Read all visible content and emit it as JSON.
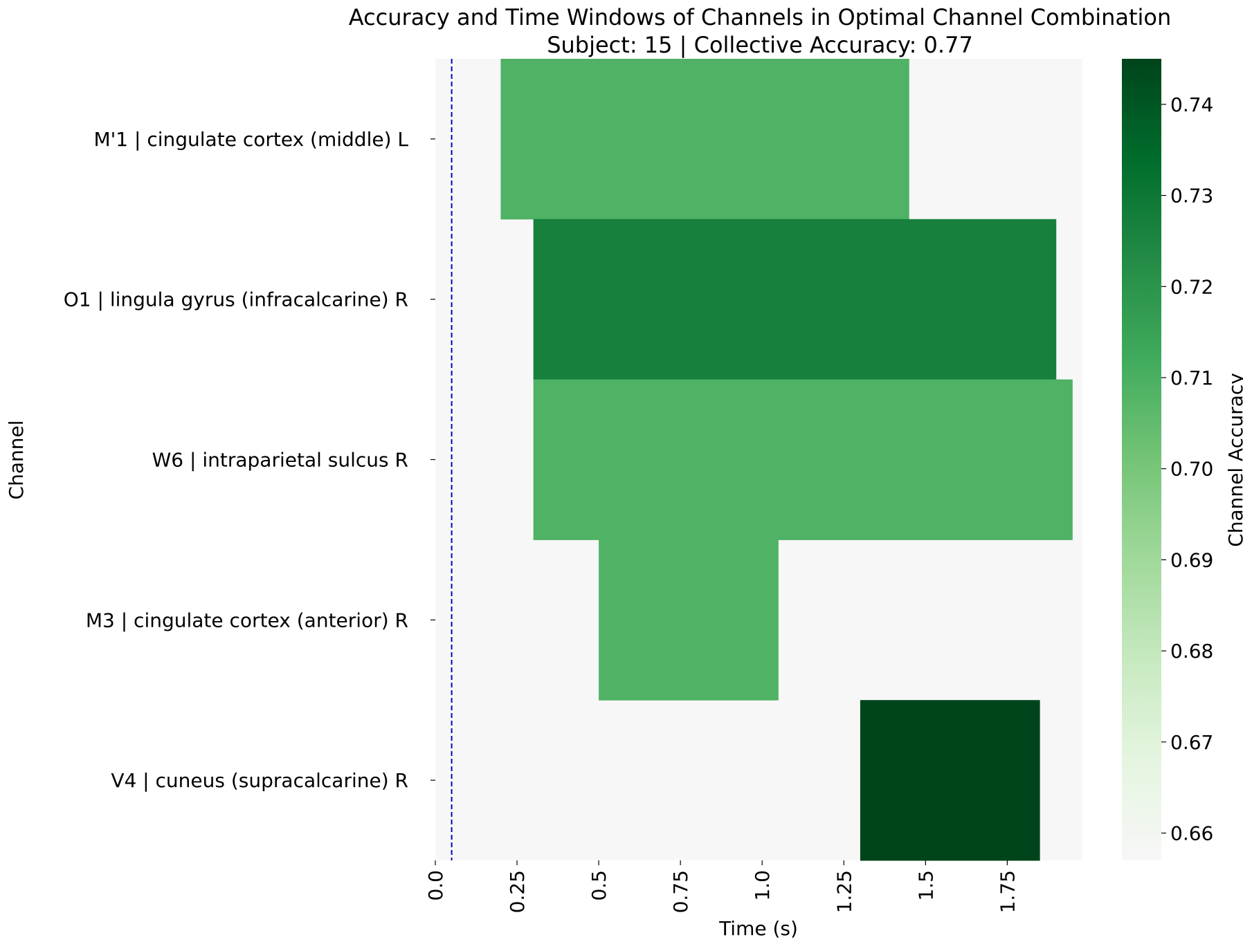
{
  "chart_data": {
    "type": "heatmap",
    "title": "Accuracy and Time Windows of Channels in Optimal Channel Combination",
    "subtitle": "Subject: 15 | Collective Accuracy: 0.77",
    "xlabel": "Time (s)",
    "ylabel": "Channel",
    "colorbar_label": "Channel Accuracy",
    "xlim": [
      0,
      1.98
    ],
    "x_ticks": [
      0.0,
      0.25,
      0.5,
      0.75,
      1.0,
      1.25,
      1.5,
      1.75
    ],
    "x_tick_labels": [
      "0.0",
      "0.25",
      "0.5",
      "0.75",
      "1.0",
      "1.25",
      "1.5",
      "1.75"
    ],
    "marker_line_x": 0.05,
    "background_value": 0.657,
    "colorbar_range": [
      0.657,
      0.745
    ],
    "colorbar_ticks": [
      0.66,
      0.67,
      0.68,
      0.69,
      0.7,
      0.71,
      0.72,
      0.73,
      0.74
    ],
    "colorbar_tick_labels": [
      "0.66",
      "0.67",
      "0.68",
      "0.69",
      "0.70",
      "0.71",
      "0.72",
      "0.73",
      "0.74"
    ],
    "colormap": "Greens",
    "colorbar_colors": [
      "#f7f7f7",
      "#e5f5e0",
      "#c7e9c0",
      "#a1d99b",
      "#74c476",
      "#41ab5d",
      "#238b45",
      "#006d2c",
      "#00441b"
    ],
    "grid": false,
    "channels": [
      {
        "label": "M'1 | cingulate cortex (middle) L",
        "start": 0.2,
        "end": 1.45,
        "accuracy": 0.709
      },
      {
        "label": "O1 | lingula gyrus (infracalcarine) R",
        "start": 0.3,
        "end": 1.9,
        "accuracy": 0.727
      },
      {
        "label": "W6 | intraparietal sulcus R",
        "start": 0.3,
        "end": 1.95,
        "accuracy": 0.709
      },
      {
        "label": "M3 | cingulate cortex (anterior) R",
        "start": 0.5,
        "end": 1.05,
        "accuracy": 0.709
      },
      {
        "label": "V4 | cuneus (supracalcarine) R",
        "start": 1.3,
        "end": 1.85,
        "accuracy": 0.745
      }
    ]
  }
}
